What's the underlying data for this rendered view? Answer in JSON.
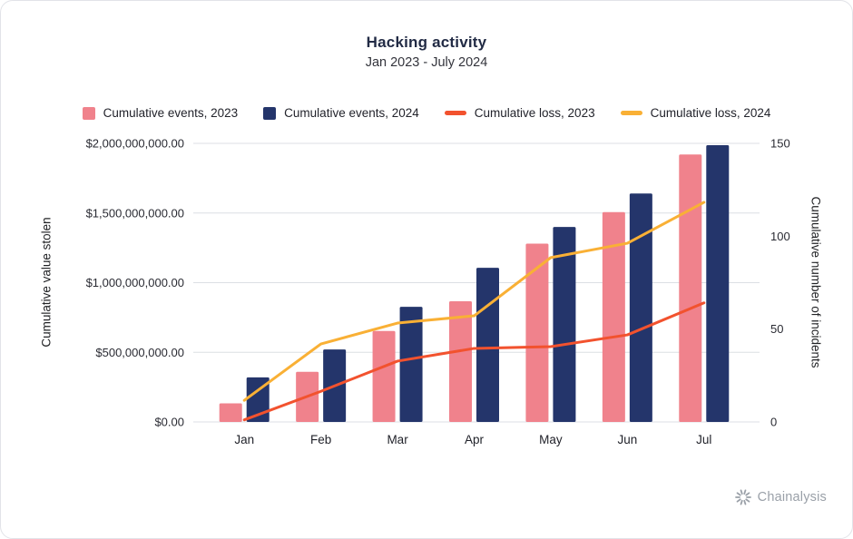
{
  "header": {
    "title": "Hacking activity",
    "subtitle": "Jan 2023 - July 2024"
  },
  "legend": [
    {
      "label": "Cumulative events, 2023",
      "color": "#F0828C",
      "type": "square"
    },
    {
      "label": "Cumulative events, 2024",
      "color": "#24356B",
      "type": "square"
    },
    {
      "label": "Cumulative loss, 2023",
      "color": "#F2522E",
      "type": "line"
    },
    {
      "label": "Cumulative loss, 2024",
      "color": "#F9B035",
      "type": "line"
    }
  ],
  "chart_data": {
    "type": "bar+line combo",
    "categories": [
      "Jan",
      "Feb",
      "Mar",
      "Apr",
      "May",
      "Jun",
      "Jul"
    ],
    "bar_series": [
      {
        "name": "Cumulative events, 2023",
        "axis": "right",
        "color": "#F0828C",
        "values": [
          10,
          27,
          49,
          65,
          96,
          113,
          144
        ]
      },
      {
        "name": "Cumulative events, 2024",
        "axis": "right",
        "color": "#24356B",
        "values": [
          24,
          39,
          62,
          83,
          105,
          123,
          149
        ]
      }
    ],
    "line_series": [
      {
        "name": "Cumulative loss, 2023",
        "axis": "left",
        "color": "#F2522E",
        "values": [
          15000000,
          220000000,
          437000000,
          528000000,
          541000000,
          625000000,
          855000000
        ]
      },
      {
        "name": "Cumulative loss, 2024",
        "axis": "left",
        "color": "#F9B035",
        "values": [
          155000000,
          560000000,
          710000000,
          762000000,
          1180000000,
          1283000000,
          1577000000
        ]
      }
    ],
    "left_axis": {
      "label": "Cumulative value stolen",
      "min": 0,
      "max": 2000000000,
      "ticks": [
        "$0.00",
        "$500,000,000.00",
        "$1,000,000,000.00",
        "$1,500,000,000.00",
        "$2,000,000,000.00"
      ]
    },
    "right_axis": {
      "label": "Cumulative number of incidents",
      "min": 0,
      "max": 150,
      "ticks": [
        0,
        50,
        100,
        150
      ]
    },
    "grid": true,
    "legend_position": "top"
  },
  "footer": {
    "brand": "Chainalysis",
    "logo_icon": "chainalysis-sunburst-icon"
  }
}
